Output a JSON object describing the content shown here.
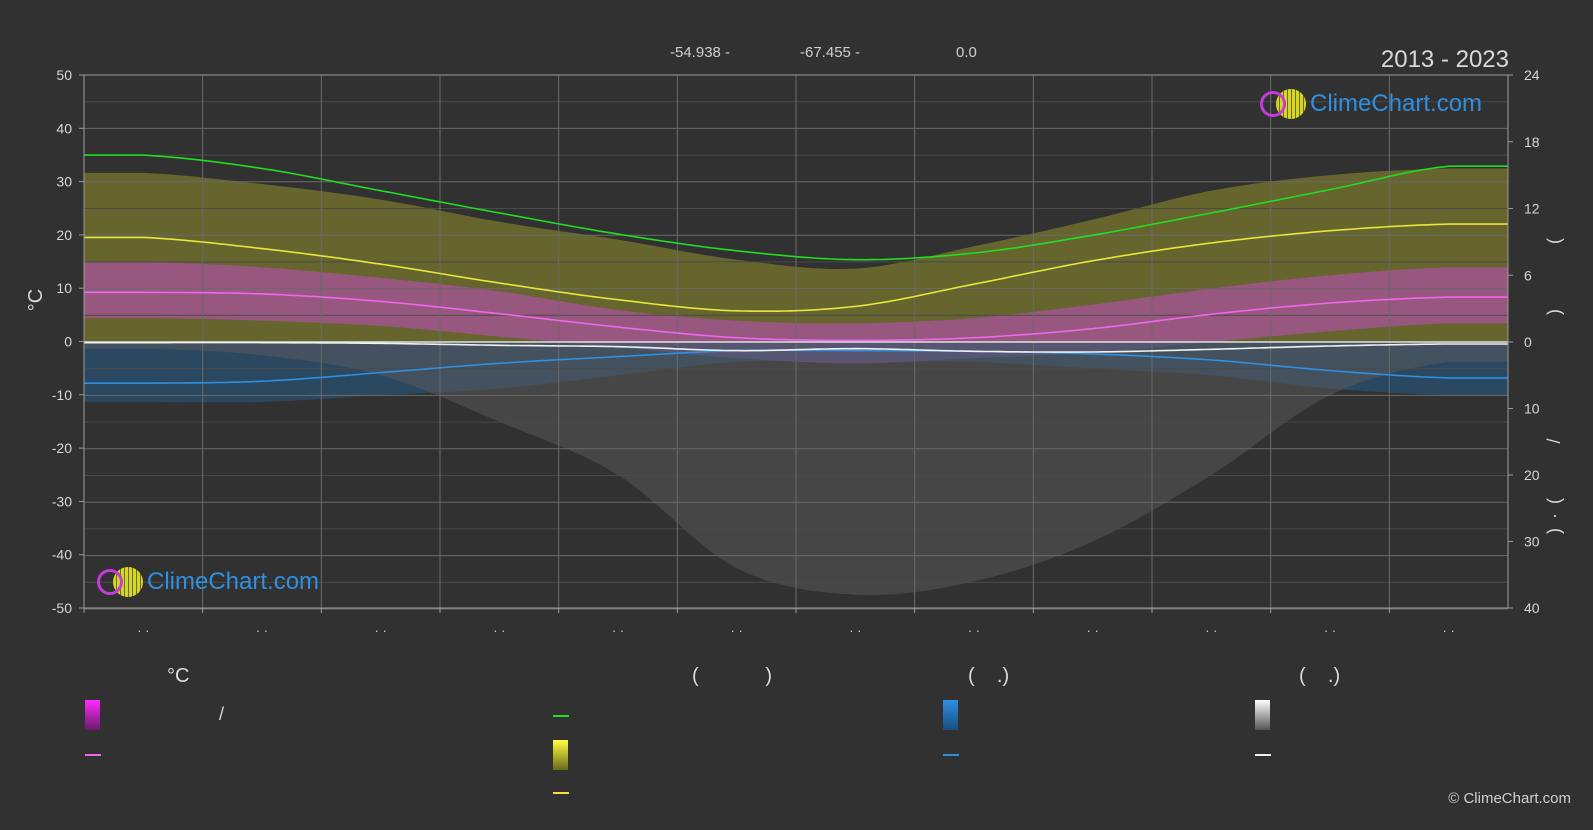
{
  "header": {
    "coordinates": [
      "-54.938 -",
      "-67.455 -",
      "0.0"
    ],
    "year_range": "2013 - 2023"
  },
  "branding": {
    "logo_text": "ClimeChart.com",
    "copyright": "© ClimeChart.com"
  },
  "axes": {
    "left_unit": "°C",
    "left_ticks": [
      "50",
      "40",
      "30",
      "20",
      "10",
      "0",
      "-10",
      "-20",
      "-30",
      "-40",
      "-50"
    ],
    "right_top_ticks": [
      "24",
      "18",
      "12",
      "6",
      "0"
    ],
    "right_bottom_ticks": [
      "10",
      "20",
      "30",
      "40"
    ],
    "right_label_marks": [
      "(",
      ")",
      "/",
      "(",
      "·",
      ")"
    ],
    "month_ticks": [
      "· ·",
      "· ·",
      "· ·",
      "· ·",
      "· ·",
      "· ·",
      "· ·",
      "· ·",
      "· ·",
      "· ·",
      "· ·",
      "· ·"
    ]
  },
  "legend": {
    "headers": [
      "°C",
      "(            )",
      "(    .)",
      "(    .)"
    ],
    "slash": "/"
  },
  "colors": {
    "background": "#313131",
    "daylight_line": "#22dd22",
    "sunshine_line": "#e6e63c",
    "temp_line": "#ee66ee",
    "precip_line": "#2f8fe0",
    "snow_line": "#f0f0f0",
    "grid": "#6a6a6a"
  },
  "chart_data": {
    "type": "line",
    "x": [
      1,
      2,
      3,
      4,
      5,
      6,
      7,
      8,
      9,
      10,
      11,
      12
    ],
    "xlim": [
      0.5,
      12.5
    ],
    "left_axis": {
      "label": "°C",
      "range": [
        -50,
        50
      ]
    },
    "right_axis_top": {
      "range": [
        0,
        24
      ]
    },
    "right_axis_bottom": {
      "range": [
        0,
        40
      ]
    },
    "series": [
      {
        "key": "daylight",
        "axis": "right_top",
        "color": "#22dd22",
        "values": [
          16.8,
          15.6,
          13.6,
          11.6,
          9.7,
          8.2,
          7.4,
          8.0,
          9.6,
          11.6,
          13.7,
          15.8
        ]
      },
      {
        "key": "sunshine",
        "axis": "right_top",
        "color": "#e6e63c",
        "values": [
          9.4,
          8.4,
          7.0,
          5.3,
          3.8,
          2.8,
          3.2,
          5.2,
          7.3,
          8.9,
          10.0,
          10.6
        ]
      },
      {
        "key": "temp_mean",
        "axis": "left",
        "color": "#ee66ee",
        "values": [
          9.3,
          9.0,
          7.6,
          5.3,
          2.8,
          0.8,
          0.3,
          0.8,
          2.5,
          5.2,
          7.3,
          8.4
        ]
      },
      {
        "key": "precip_mean",
        "axis": "right_bottom",
        "color": "#2f8fe0",
        "values": [
          6.2,
          5.9,
          4.6,
          3.2,
          2.2,
          1.3,
          1.3,
          1.4,
          1.8,
          2.7,
          4.3,
          5.4
        ]
      },
      {
        "key": "snow_mean",
        "axis": "right_bottom",
        "color": "#f0f0f0",
        "values": [
          0.1,
          0.1,
          0.2,
          0.5,
          0.7,
          1.3,
          1.0,
          1.4,
          1.5,
          1.1,
          0.6,
          0.3
        ]
      }
    ],
    "bands": [
      {
        "key": "sunshine_band",
        "axis": "right_top",
        "color": "#9a9a2a",
        "max": [
          15.2,
          14.2,
          12.8,
          10.8,
          9.2,
          7.4,
          6.6,
          8.6,
          11.0,
          13.6,
          15.0,
          15.6
        ]
      },
      {
        "key": "temp_band",
        "axis": "left",
        "color": "#c24dc2",
        "min": [
          4.5,
          4.0,
          3.0,
          1.0,
          -1.0,
          -3.0,
          -4.0,
          -3.0,
          -2.0,
          0.0,
          2.0,
          3.5
        ],
        "max": [
          15.0,
          14.0,
          12.0,
          9.5,
          6.0,
          4.0,
          3.5,
          4.5,
          7.0,
          10.0,
          12.5,
          14.0
        ]
      },
      {
        "key": "precip_band",
        "axis": "right_bottom",
        "color": "#235f8f",
        "max": [
          9,
          9,
          8,
          7,
          5,
          3,
          3,
          3,
          4,
          5,
          7,
          8
        ]
      },
      {
        "key": "snow_band",
        "axis": "right_bottom",
        "color": "#5c5c5c",
        "max": [
          1,
          2,
          5,
          12,
          20,
          34,
          38,
          36,
          30,
          20,
          8,
          3
        ]
      }
    ],
    "grid": true
  }
}
